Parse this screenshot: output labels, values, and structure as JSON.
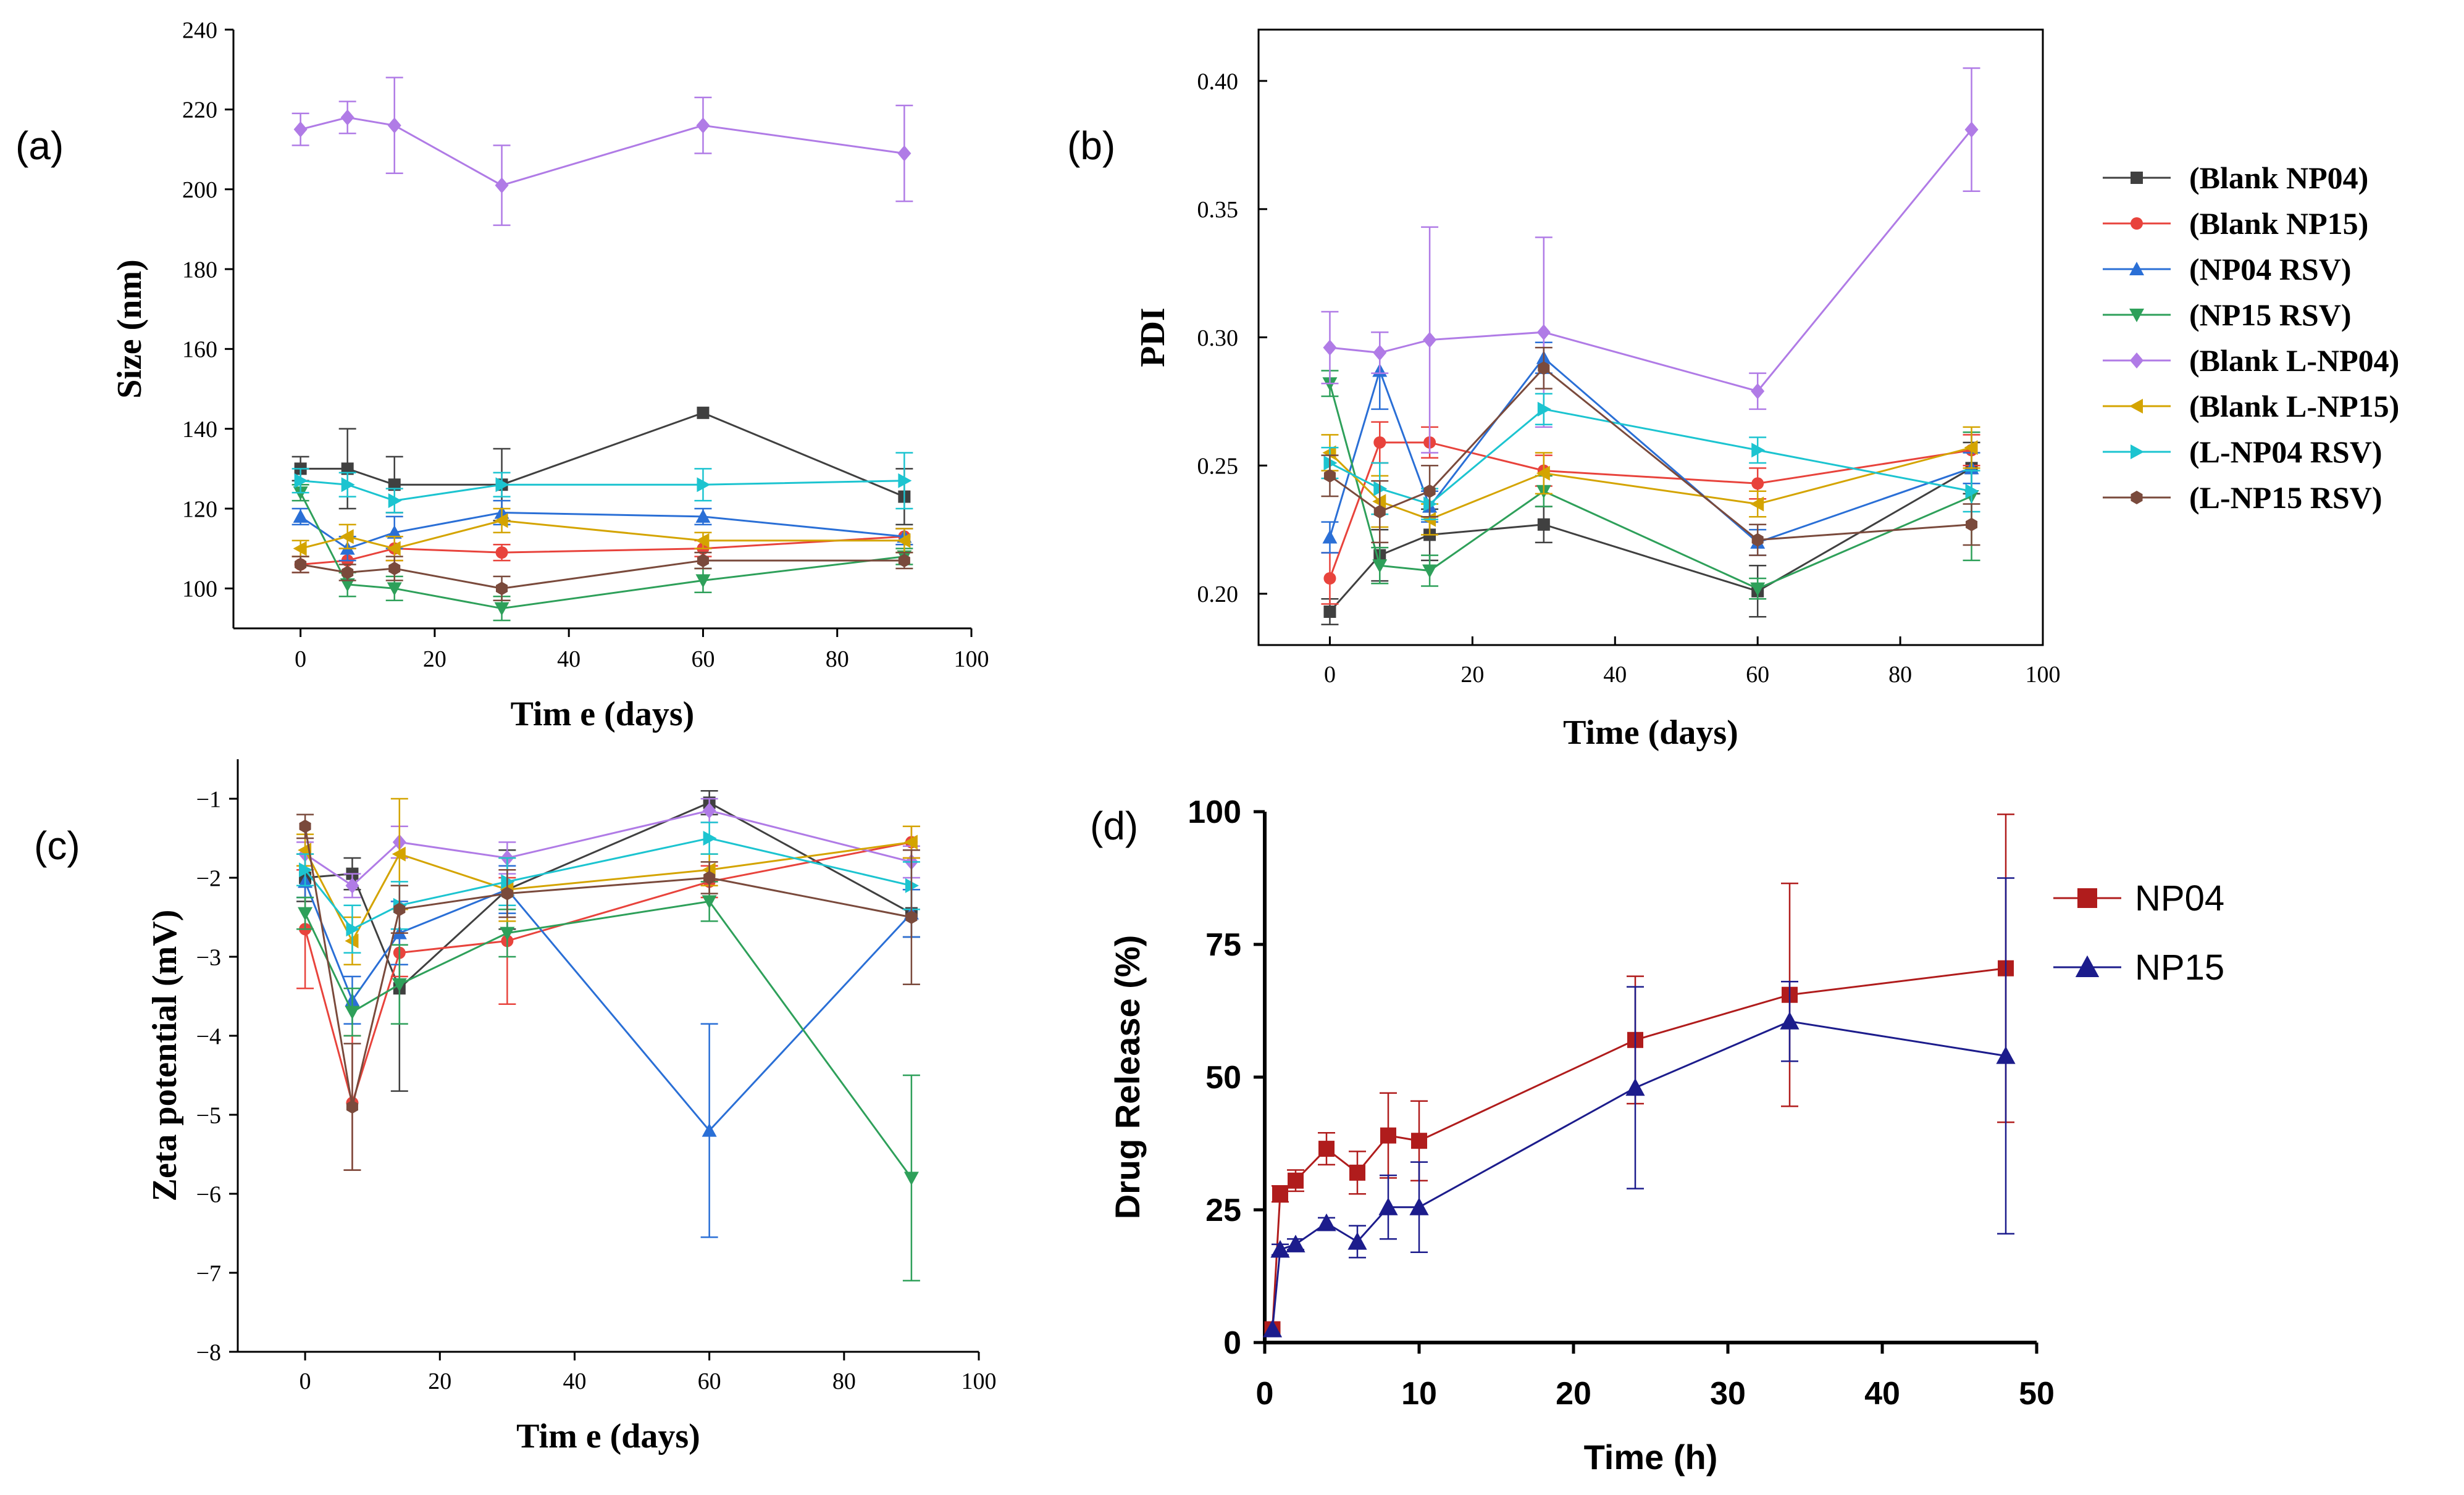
{
  "figure": {
    "panels": {
      "a": {
        "label": "(a)"
      },
      "b": {
        "label": "(b)"
      },
      "c": {
        "label": "(c)"
      },
      "d": {
        "label": "(d)"
      }
    }
  },
  "chart_data": [
    {
      "id": "a",
      "type": "line",
      "title": "",
      "xlabel": "Tim e (days)",
      "ylabel": "Size (nm)",
      "xlim": [
        -10,
        100
      ],
      "ylim": [
        90,
        240
      ],
      "xticks": [
        0,
        20,
        40,
        60,
        80,
        100
      ],
      "yticks": [
        100,
        120,
        140,
        160,
        180,
        200,
        220,
        240
      ],
      "x": [
        0,
        7,
        14,
        30,
        60,
        90
      ],
      "series": [
        {
          "name": "(Blank NP04)",
          "color": "#404040",
          "marker": "square",
          "values": [
            130,
            130,
            126,
            126,
            144,
            123
          ],
          "errors": [
            3,
            10,
            7,
            9,
            0,
            7
          ]
        },
        {
          "name": "(Blank NP15)",
          "color": "#e8433c",
          "marker": "circle",
          "values": [
            106,
            107,
            110,
            109,
            110,
            113
          ],
          "errors": [
            2,
            3,
            3,
            2,
            2,
            2
          ]
        },
        {
          "name": "(NP04 RSV)",
          "color": "#2a6fd6",
          "marker": "triangle-up",
          "values": [
            118,
            110,
            114,
            119,
            118,
            113
          ],
          "errors": [
            2,
            3,
            4,
            3,
            2,
            2
          ]
        },
        {
          "name": "(NP15 RSV)",
          "color": "#2ea05a",
          "marker": "triangle-down",
          "values": [
            124,
            101,
            100,
            95,
            102,
            108
          ],
          "errors": [
            2,
            3,
            3,
            3,
            3,
            2
          ]
        },
        {
          "name": "(Blank L-NP04)",
          "color": "#b07be6",
          "marker": "diamond",
          "values": [
            215,
            218,
            216,
            201,
            216,
            209
          ],
          "errors": [
            4,
            4,
            12,
            10,
            7,
            12
          ]
        },
        {
          "name": "(Blank L-NP15)",
          "color": "#d4a400",
          "marker": "triangle-left",
          "values": [
            110,
            113,
            110,
            117,
            112,
            112
          ],
          "errors": [
            2,
            3,
            3,
            3,
            2,
            3
          ]
        },
        {
          "name": "(L-NP04 RSV)",
          "color": "#1cc4d0",
          "marker": "triangle-right",
          "values": [
            127,
            126,
            122,
            126,
            126,
            127
          ],
          "errors": [
            3,
            3,
            3,
            3,
            4,
            7
          ]
        },
        {
          "name": "(L-NP15 RSV)",
          "color": "#7a4a3c",
          "marker": "hexagon",
          "values": [
            106,
            104,
            105,
            100,
            107,
            107
          ],
          "errors": [
            2,
            2,
            3,
            3,
            2,
            2
          ]
        }
      ]
    },
    {
      "id": "b",
      "type": "line",
      "title": "",
      "xlabel": "Time (days)",
      "ylabel": "PDI",
      "xlim": [
        -10,
        100
      ],
      "ylim": [
        0.18,
        0.42
      ],
      "xticks": [
        0,
        20,
        40,
        60,
        80,
        100
      ],
      "yticks": [
        0.2,
        0.25,
        0.3,
        0.35,
        0.4
      ],
      "ytick_labels": [
        "0.20",
        "0.25",
        "0.30",
        "0.35",
        "0.40"
      ],
      "x": [
        0,
        7,
        14,
        30,
        60,
        90
      ],
      "series": [
        {
          "name": "(Blank NP04)",
          "color": "#404040",
          "marker": "square",
          "values": [
            0.193,
            0.215,
            0.223,
            0.227,
            0.201,
            0.249
          ],
          "errors": [
            0.005,
            0.01,
            0.01,
            0.007,
            0.01,
            0.01
          ]
        },
        {
          "name": "(Blank NP15)",
          "color": "#e8433c",
          "marker": "circle",
          "values": [
            0.206,
            0.259,
            0.259,
            0.248,
            0.243,
            0.256
          ],
          "errors": [
            0.01,
            0.008,
            0.006,
            0.006,
            0.006,
            0.006
          ]
        },
        {
          "name": "(NP04 RSV)",
          "color": "#2a6fd6",
          "marker": "triangle-up",
          "values": [
            0.222,
            0.287,
            0.234,
            0.292,
            0.22,
            0.249
          ],
          "errors": [
            0.006,
            0.015,
            0.006,
            0.006,
            0.005,
            0.006
          ]
        },
        {
          "name": "(NP15 RSV)",
          "color": "#2ea05a",
          "marker": "triangle-down",
          "values": [
            0.282,
            0.211,
            0.209,
            0.24,
            0.202,
            0.238
          ],
          "errors": [
            0.005,
            0.007,
            0.006,
            0.006,
            0.004,
            0.025
          ]
        },
        {
          "name": "(Blank L-NP04)",
          "color": "#b07be6",
          "marker": "diamond",
          "values": [
            0.296,
            0.294,
            0.299,
            0.302,
            0.279,
            0.381
          ],
          "errors": [
            0.014,
            0.008,
            0.044,
            0.037,
            0.007,
            0.024
          ]
        },
        {
          "name": "(Blank L-NP15)",
          "color": "#d4a400",
          "marker": "triangle-left",
          "values": [
            0.255,
            0.236,
            0.229,
            0.247,
            0.235,
            0.257
          ],
          "errors": [
            0.007,
            0.01,
            0.006,
            0.008,
            0.005,
            0.008
          ]
        },
        {
          "name": "(L-NP04 RSV)",
          "color": "#1cc4d0",
          "marker": "triangle-right",
          "values": [
            0.251,
            0.241,
            0.235,
            0.272,
            0.256,
            0.24
          ],
          "errors": [
            0.006,
            0.01,
            0.006,
            0.006,
            0.005,
            0.008
          ]
        },
        {
          "name": "(L-NP15 RSV)",
          "color": "#7a4a3c",
          "marker": "hexagon",
          "values": [
            0.246,
            0.232,
            0.24,
            0.288,
            0.221,
            0.227
          ],
          "errors": [
            0.008,
            0.012,
            0.01,
            0.008,
            0.006,
            0.008
          ]
        }
      ]
    },
    {
      "id": "c",
      "type": "line",
      "title": "",
      "xlabel": "Tim e (days)",
      "ylabel": "Zeta potential (mV)",
      "xlim": [
        -10,
        100
      ],
      "ylim": [
        -8,
        -0.5
      ],
      "xticks": [
        0,
        20,
        40,
        60,
        80,
        100
      ],
      "yticks": [
        -1,
        -2,
        -3,
        -4,
        -5,
        -6,
        -7,
        -8
      ],
      "ytick_labels": [
        "−1",
        "−2",
        "−3",
        "−4",
        "−5",
        "−6",
        "−7",
        "−8"
      ],
      "x": [
        0,
        7,
        14,
        30,
        60,
        90
      ],
      "series": [
        {
          "name": "(Blank NP04)",
          "color": "#404040",
          "marker": "square",
          "values": [
            -2.0,
            -1.95,
            -3.4,
            -2.15,
            -1.05,
            -2.45
          ],
          "errors": [
            0.3,
            0.2,
            1.3,
            0.5,
            0.15,
            0.3
          ]
        },
        {
          "name": "(Blank NP15)",
          "color": "#e8433c",
          "marker": "circle",
          "values": [
            -2.65,
            -4.85,
            -2.95,
            -2.8,
            -2.05,
            -1.55
          ],
          "errors": [
            0.75,
            0.85,
            0.3,
            0.8,
            0.2,
            0.2
          ]
        },
        {
          "name": "(NP04 RSV)",
          "color": "#2a6fd6",
          "marker": "triangle-up",
          "values": [
            -2.05,
            -3.55,
            -2.7,
            -2.15,
            -5.2,
            -2.45
          ],
          "errors": [
            0.2,
            0.3,
            0.4,
            0.3,
            1.35,
            0.3
          ]
        },
        {
          "name": "(NP15 RSV)",
          "color": "#2ea05a",
          "marker": "triangle-down",
          "values": [
            -2.45,
            -3.7,
            -3.35,
            -2.7,
            -2.3,
            -5.8
          ],
          "errors": [
            0.2,
            0.3,
            0.5,
            0.3,
            0.25,
            1.3
          ]
        },
        {
          "name": "(Blank L-NP04)",
          "color": "#b07be6",
          "marker": "diamond",
          "values": [
            -1.7,
            -2.1,
            -1.55,
            -1.75,
            -1.15,
            -1.8
          ],
          "errors": [
            0.15,
            0.15,
            0.2,
            0.2,
            0.15,
            0.2
          ]
        },
        {
          "name": "(Blank L-NP15)",
          "color": "#d4a400",
          "marker": "triangle-left",
          "values": [
            -1.65,
            -2.8,
            -1.7,
            -2.15,
            -1.9,
            -1.55
          ],
          "errors": [
            0.2,
            0.3,
            0.7,
            0.4,
            0.2,
            0.2
          ]
        },
        {
          "name": "(L-NP04 RSV)",
          "color": "#1cc4d0",
          "marker": "triangle-right",
          "values": [
            -1.9,
            -2.65,
            -2.35,
            -2.05,
            -1.5,
            -2.1
          ],
          "errors": [
            0.2,
            0.3,
            0.3,
            0.3,
            0.2,
            0.3
          ]
        },
        {
          "name": "(L-NP15 RSV)",
          "color": "#7a4a3c",
          "marker": "hexagon",
          "values": [
            -1.35,
            -4.9,
            -2.4,
            -2.2,
            -2.0,
            -2.5
          ],
          "errors": [
            0.15,
            0.8,
            0.3,
            0.3,
            0.2,
            0.85
          ]
        }
      ]
    },
    {
      "id": "d",
      "type": "line",
      "title": "",
      "xlabel": "Time (h)",
      "ylabel": "Drug Release (%)",
      "xlim": [
        0,
        50
      ],
      "ylim": [
        0,
        100
      ],
      "xticks": [
        0,
        10,
        20,
        30,
        40,
        50
      ],
      "yticks": [
        0,
        25,
        50,
        75,
        100
      ],
      "x": [
        0.5,
        1,
        2,
        4,
        6,
        8,
        10,
        24,
        34,
        48
      ],
      "series": [
        {
          "name": "NP04",
          "color": "#b01c1c",
          "marker": "square",
          "values": [
            2.5,
            28,
            30.5,
            36.5,
            32,
            39,
            38,
            57,
            65.5,
            70.5
          ],
          "errors": [
            0,
            1.5,
            2,
            3,
            4,
            8,
            7.5,
            12,
            21,
            29
          ]
        },
        {
          "name": "NP15",
          "color": "#1c1c8c",
          "marker": "triangle-up",
          "values": [
            2.5,
            17.5,
            18.5,
            22.5,
            19,
            25.5,
            25.5,
            48,
            60.5,
            54
          ],
          "errors": [
            0,
            1,
            1,
            1,
            3,
            6,
            8.5,
            19,
            7.5,
            33.5
          ]
        }
      ]
    }
  ]
}
